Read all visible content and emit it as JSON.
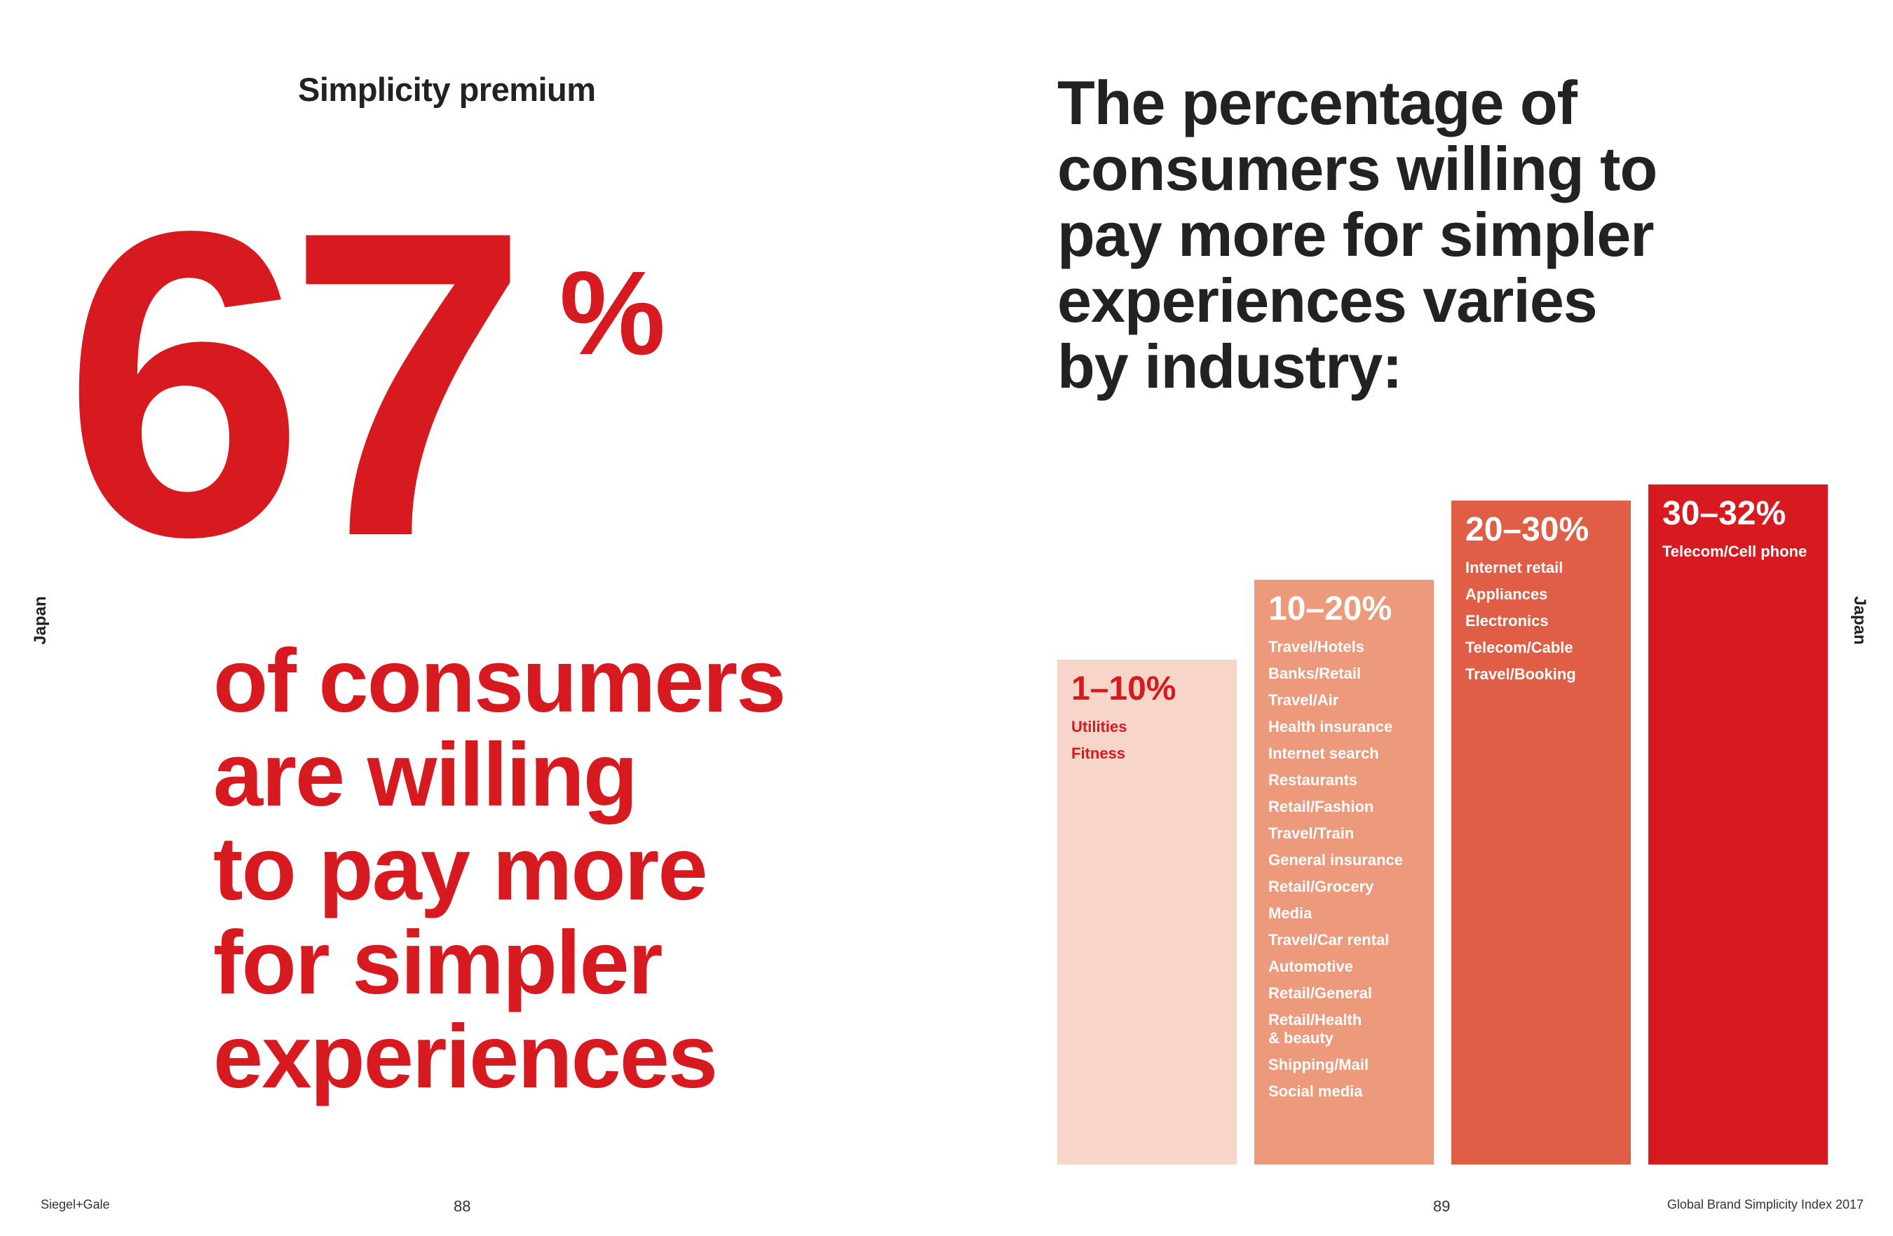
{
  "left_page": {
    "section_title": "Simplicity premium",
    "big_number": "67",
    "big_percent": "%",
    "statement_lines": [
      "of consumers",
      "are willing",
      "to pay more",
      "for simpler",
      "experiences"
    ],
    "side_label": "Japan"
  },
  "right_page": {
    "headline_lines": [
      "The percentage of",
      "consumers willing to",
      "pay more for simpler",
      "experiences varies",
      "by industry:"
    ],
    "side_label": "Japan"
  },
  "chart_data": {
    "type": "bar",
    "title": "The percentage of consumers willing to pay more for simpler experiences varies by industry:",
    "categories": [
      "1–10%",
      "10–20%",
      "20–30%",
      "30–32%"
    ],
    "values": [
      10,
      20,
      30,
      32
    ],
    "ylim": [
      0,
      32
    ],
    "grid": false,
    "colors": [
      "#f7d6c9",
      "#ec9a7b",
      "#e05e45",
      "#d71920"
    ],
    "industries": [
      [
        "Utilities",
        "Fitness"
      ],
      [
        "Travel/Hotels",
        "Banks/Retail",
        "Travel/Air",
        "Health insurance",
        "Internet search",
        "Restaurants",
        "Retail/Fashion",
        "Travel/Train",
        "General insurance",
        "Retail/Grocery",
        "Media",
        "Travel/Car rental",
        "Automotive",
        "Retail/General",
        "Retail/Health\n& beauty",
        "Shipping/Mail",
        "Social media"
      ],
      [
        "Internet retail",
        "Appliances",
        "Electronics",
        "Telecom/Cable",
        "Travel/Booking"
      ],
      [
        "Telecom/Cell phone"
      ]
    ]
  },
  "colors": {
    "accent_red": "#d71920",
    "heading_dark": "#222222"
  },
  "footer": {
    "brand": "Siegel+Gale",
    "left_page_number": "88",
    "right_page_number": "89",
    "publication": "Global Brand Simplicity Index 2017"
  }
}
